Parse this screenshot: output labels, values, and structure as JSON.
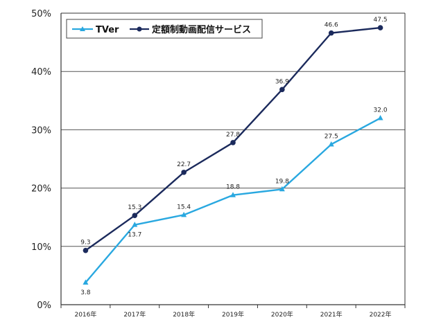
{
  "chart_data": {
    "type": "line",
    "title": "",
    "xlabel": "",
    "ylabel": "",
    "categories": [
      "2016年",
      "2017年",
      "2018年",
      "2019年",
      "2020年",
      "2021年",
      "2022年"
    ],
    "y_ticks": [
      "0%",
      "10%",
      "20%",
      "30%",
      "40%",
      "50%"
    ],
    "ylim": [
      0,
      50
    ],
    "grid": true,
    "legend_position": "top-left",
    "series": [
      {
        "name": "TVer",
        "color": "#29a8e0",
        "marker": "triangle",
        "values": [
          3.8,
          13.7,
          15.4,
          18.8,
          19.8,
          27.5,
          32.0
        ],
        "labels": [
          "3.8",
          "13.7",
          "15.4",
          "18.8",
          "19.8",
          "27.5",
          "32.0"
        ]
      },
      {
        "name": "定額制動画配信サービス",
        "color": "#1b2a5c",
        "marker": "circle",
        "values": [
          9.3,
          15.3,
          22.7,
          27.8,
          36.9,
          46.6,
          47.5
        ],
        "labels": [
          "9.3",
          "15.3",
          "22.7",
          "27.8",
          "36.9",
          "46.6",
          "47.5"
        ]
      }
    ]
  }
}
